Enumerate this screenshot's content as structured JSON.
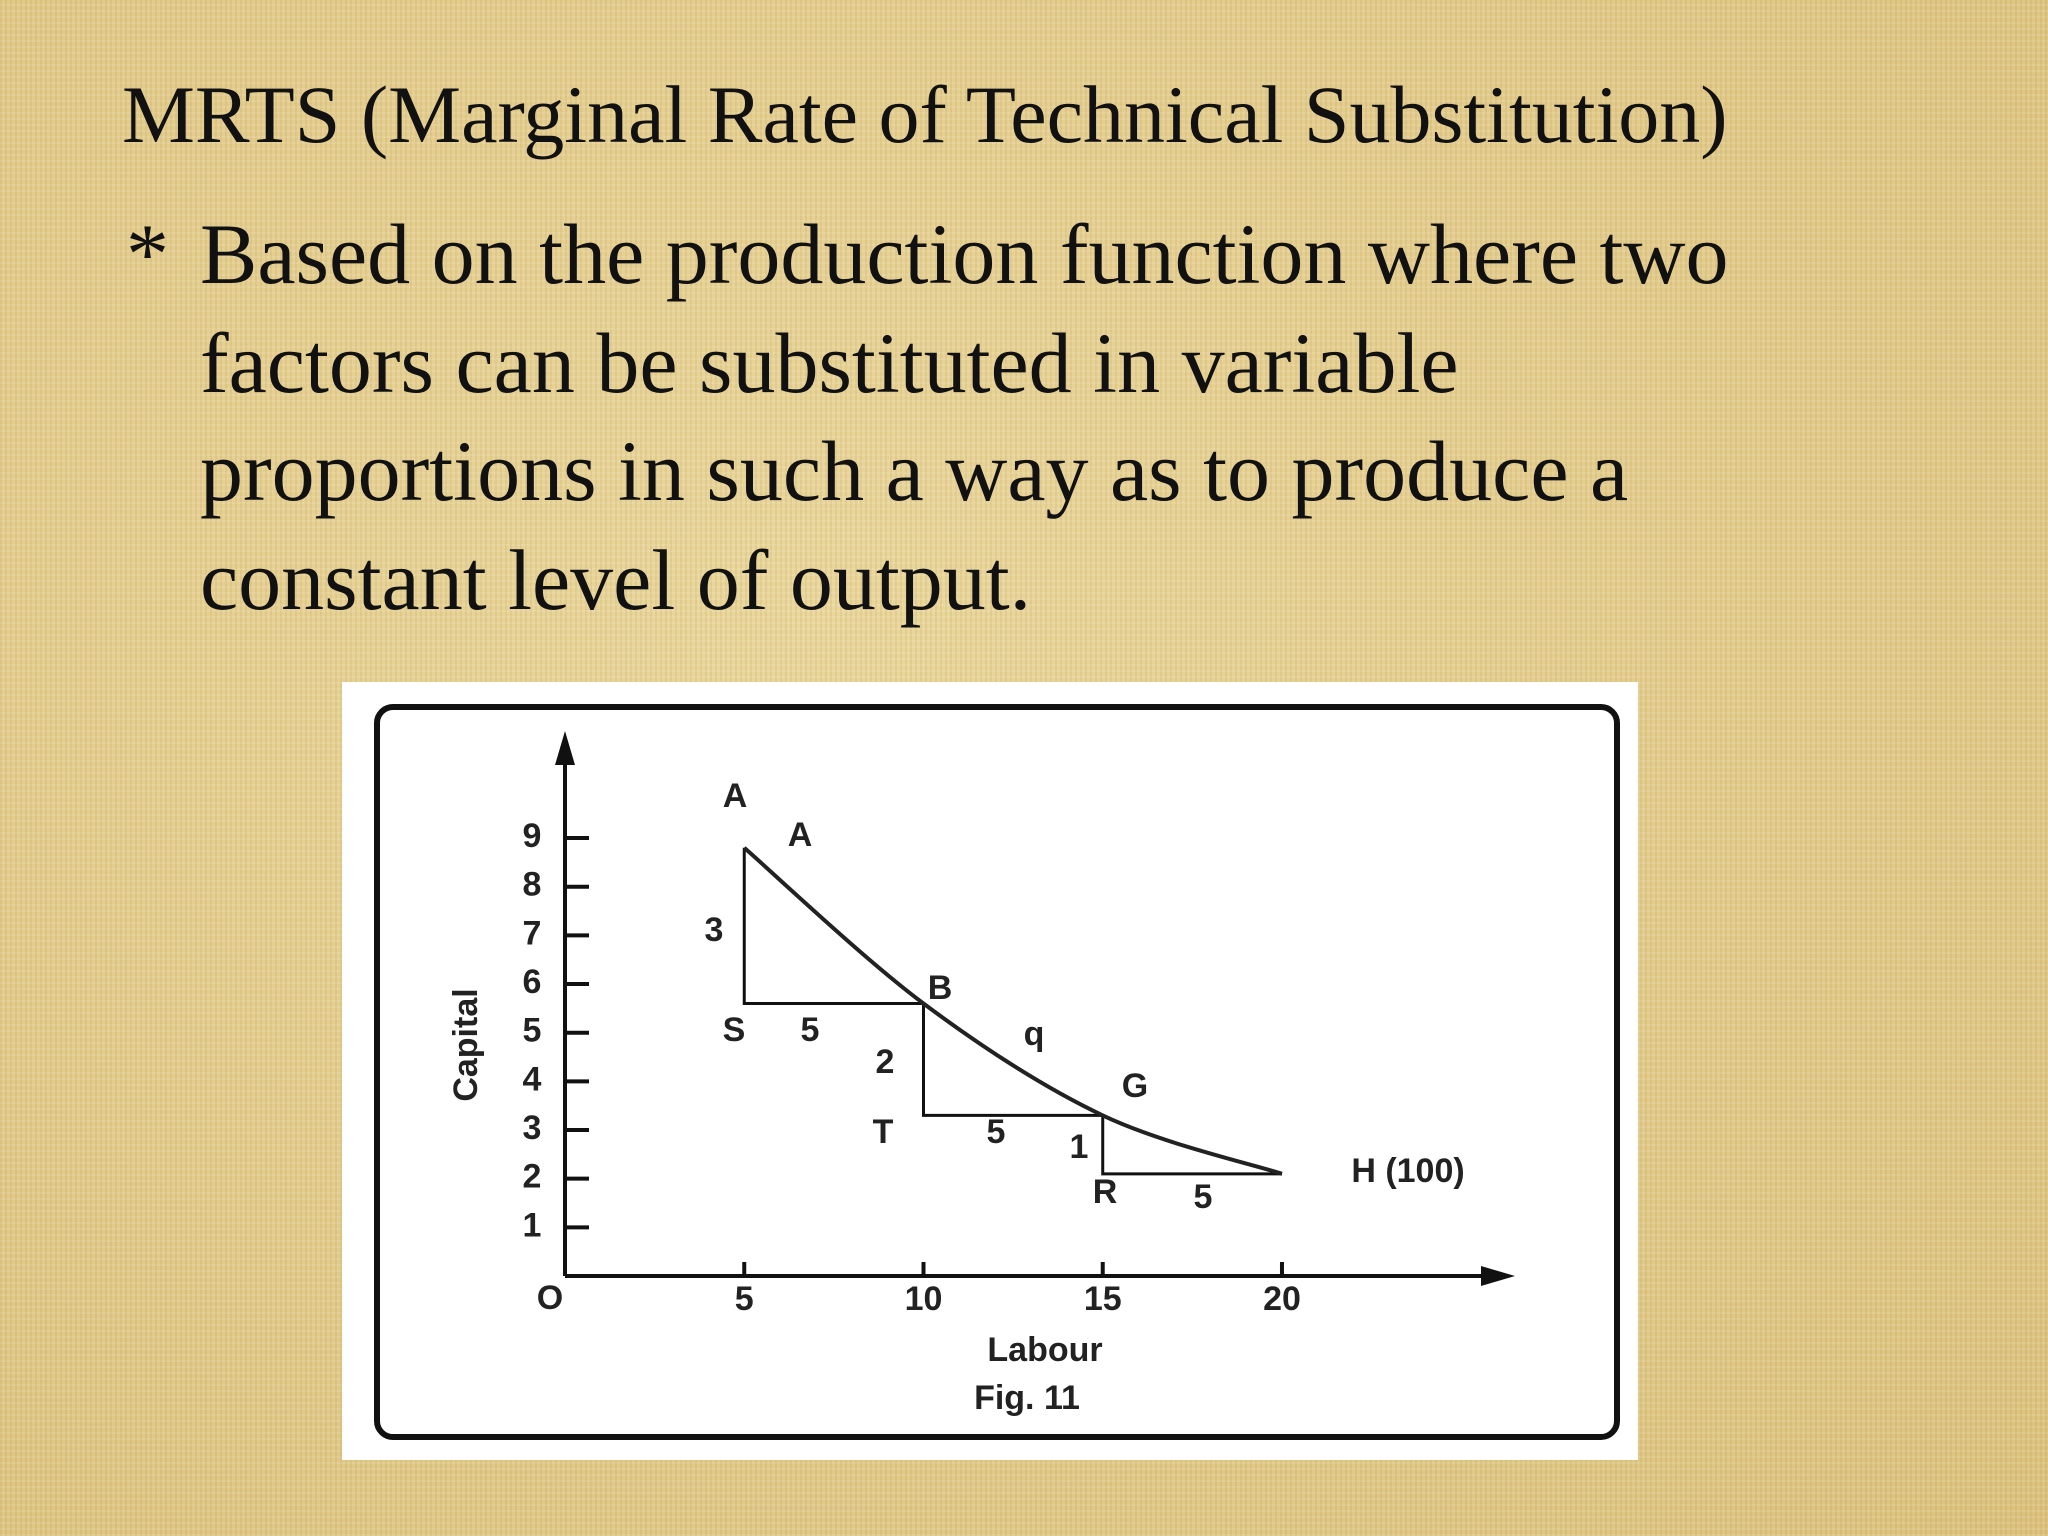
{
  "title": "MRTS (Marginal Rate of Technical Substitution)",
  "bullet": "*",
  "lines": [
    "Based on the production function where two",
    "factors can be substituted in variable",
    "proportions in such a way as to produce a",
    "constant level of output."
  ],
  "chart_data": {
    "type": "line",
    "x": [
      5,
      10,
      15,
      20
    ],
    "values": [
      8.8,
      5.6,
      3.3,
      2.1
    ],
    "color": "#222222",
    "xlim": [
      0,
      26.5
    ],
    "ylim": [
      0,
      11.2
    ],
    "xticks": [
      5,
      10,
      15,
      20
    ],
    "yticks": [
      1,
      2,
      3,
      4,
      5,
      6,
      7,
      8,
      9
    ],
    "xlabel": "Labour",
    "ylabel": "Capital",
    "caption": "Fig. 11",
    "annotations": [
      "A",
      "A",
      "3",
      "S",
      "5",
      "B",
      "q",
      "2",
      "G",
      "T",
      "5",
      "1",
      "R",
      "5",
      "H (100)",
      "O"
    ]
  }
}
